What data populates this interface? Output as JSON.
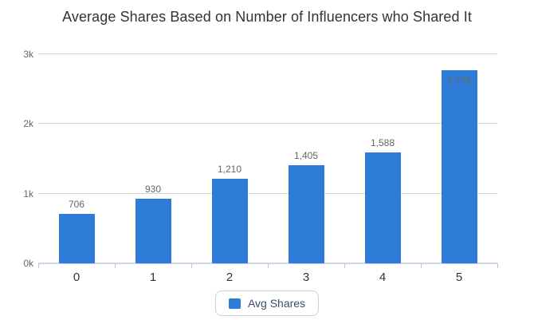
{
  "chart_data": {
    "type": "bar",
    "title": "Average Shares Based on Number of Influencers who Shared It",
    "categories": [
      "0",
      "1",
      "2",
      "3",
      "4",
      "5"
    ],
    "series": [
      {
        "name": "Avg Shares",
        "values": [
          706,
          930,
          1210,
          1405,
          1588,
          2776
        ]
      }
    ],
    "value_labels": [
      "706",
      "930",
      "1,210",
      "1,405",
      "1,588",
      "2,776"
    ],
    "xlabel": "",
    "ylabel": "",
    "ylim": [
      0,
      3000
    ],
    "yticks": [
      0,
      1000,
      2000,
      3000
    ],
    "ytick_labels": [
      "0k",
      "1k",
      "2k",
      "3k"
    ],
    "grid": true,
    "legend_position": "bottom",
    "colors": {
      "bar": "#2e7bd8",
      "grid": "#d6d6d6",
      "axis": "#ccd9ea",
      "tick": "#b3c9e0",
      "value_label": "#666666",
      "axis_label": "#333333",
      "title": "#333333",
      "legend_text": "#3a4d6b",
      "legend_border": "#d0d0d0"
    }
  },
  "legend": {
    "items": [
      {
        "label": "Avg Shares"
      }
    ]
  }
}
